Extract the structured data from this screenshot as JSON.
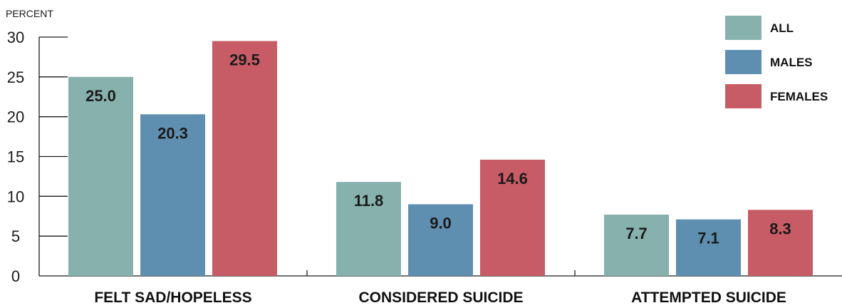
{
  "chart_data": {
    "type": "bar",
    "unit_label": "PERCENT",
    "categories": [
      "FELT SAD/HOPELESS",
      "CONSIDERED SUICIDE",
      "ATTEMPTED SUICIDE"
    ],
    "series": [
      {
        "name": "ALL",
        "color": "#86b1ad",
        "values": [
          25.0,
          11.8,
          7.7
        ],
        "labels": [
          "25.0",
          "11.8",
          "7.7"
        ]
      },
      {
        "name": "MALES",
        "color": "#5f8fb0",
        "values": [
          20.3,
          9.0,
          7.1
        ],
        "labels": [
          "20.3",
          "9.0",
          "7.1"
        ]
      },
      {
        "name": "FEMALES",
        "color": "#c75b66",
        "values": [
          29.5,
          14.6,
          8.3
        ],
        "labels": [
          "29.5",
          "14.6",
          "8.3"
        ]
      }
    ],
    "ylim": [
      0,
      30
    ],
    "yticks": [
      0,
      5,
      10,
      15,
      20,
      25,
      30
    ],
    "legend_position": "top-right",
    "grid": false
  }
}
